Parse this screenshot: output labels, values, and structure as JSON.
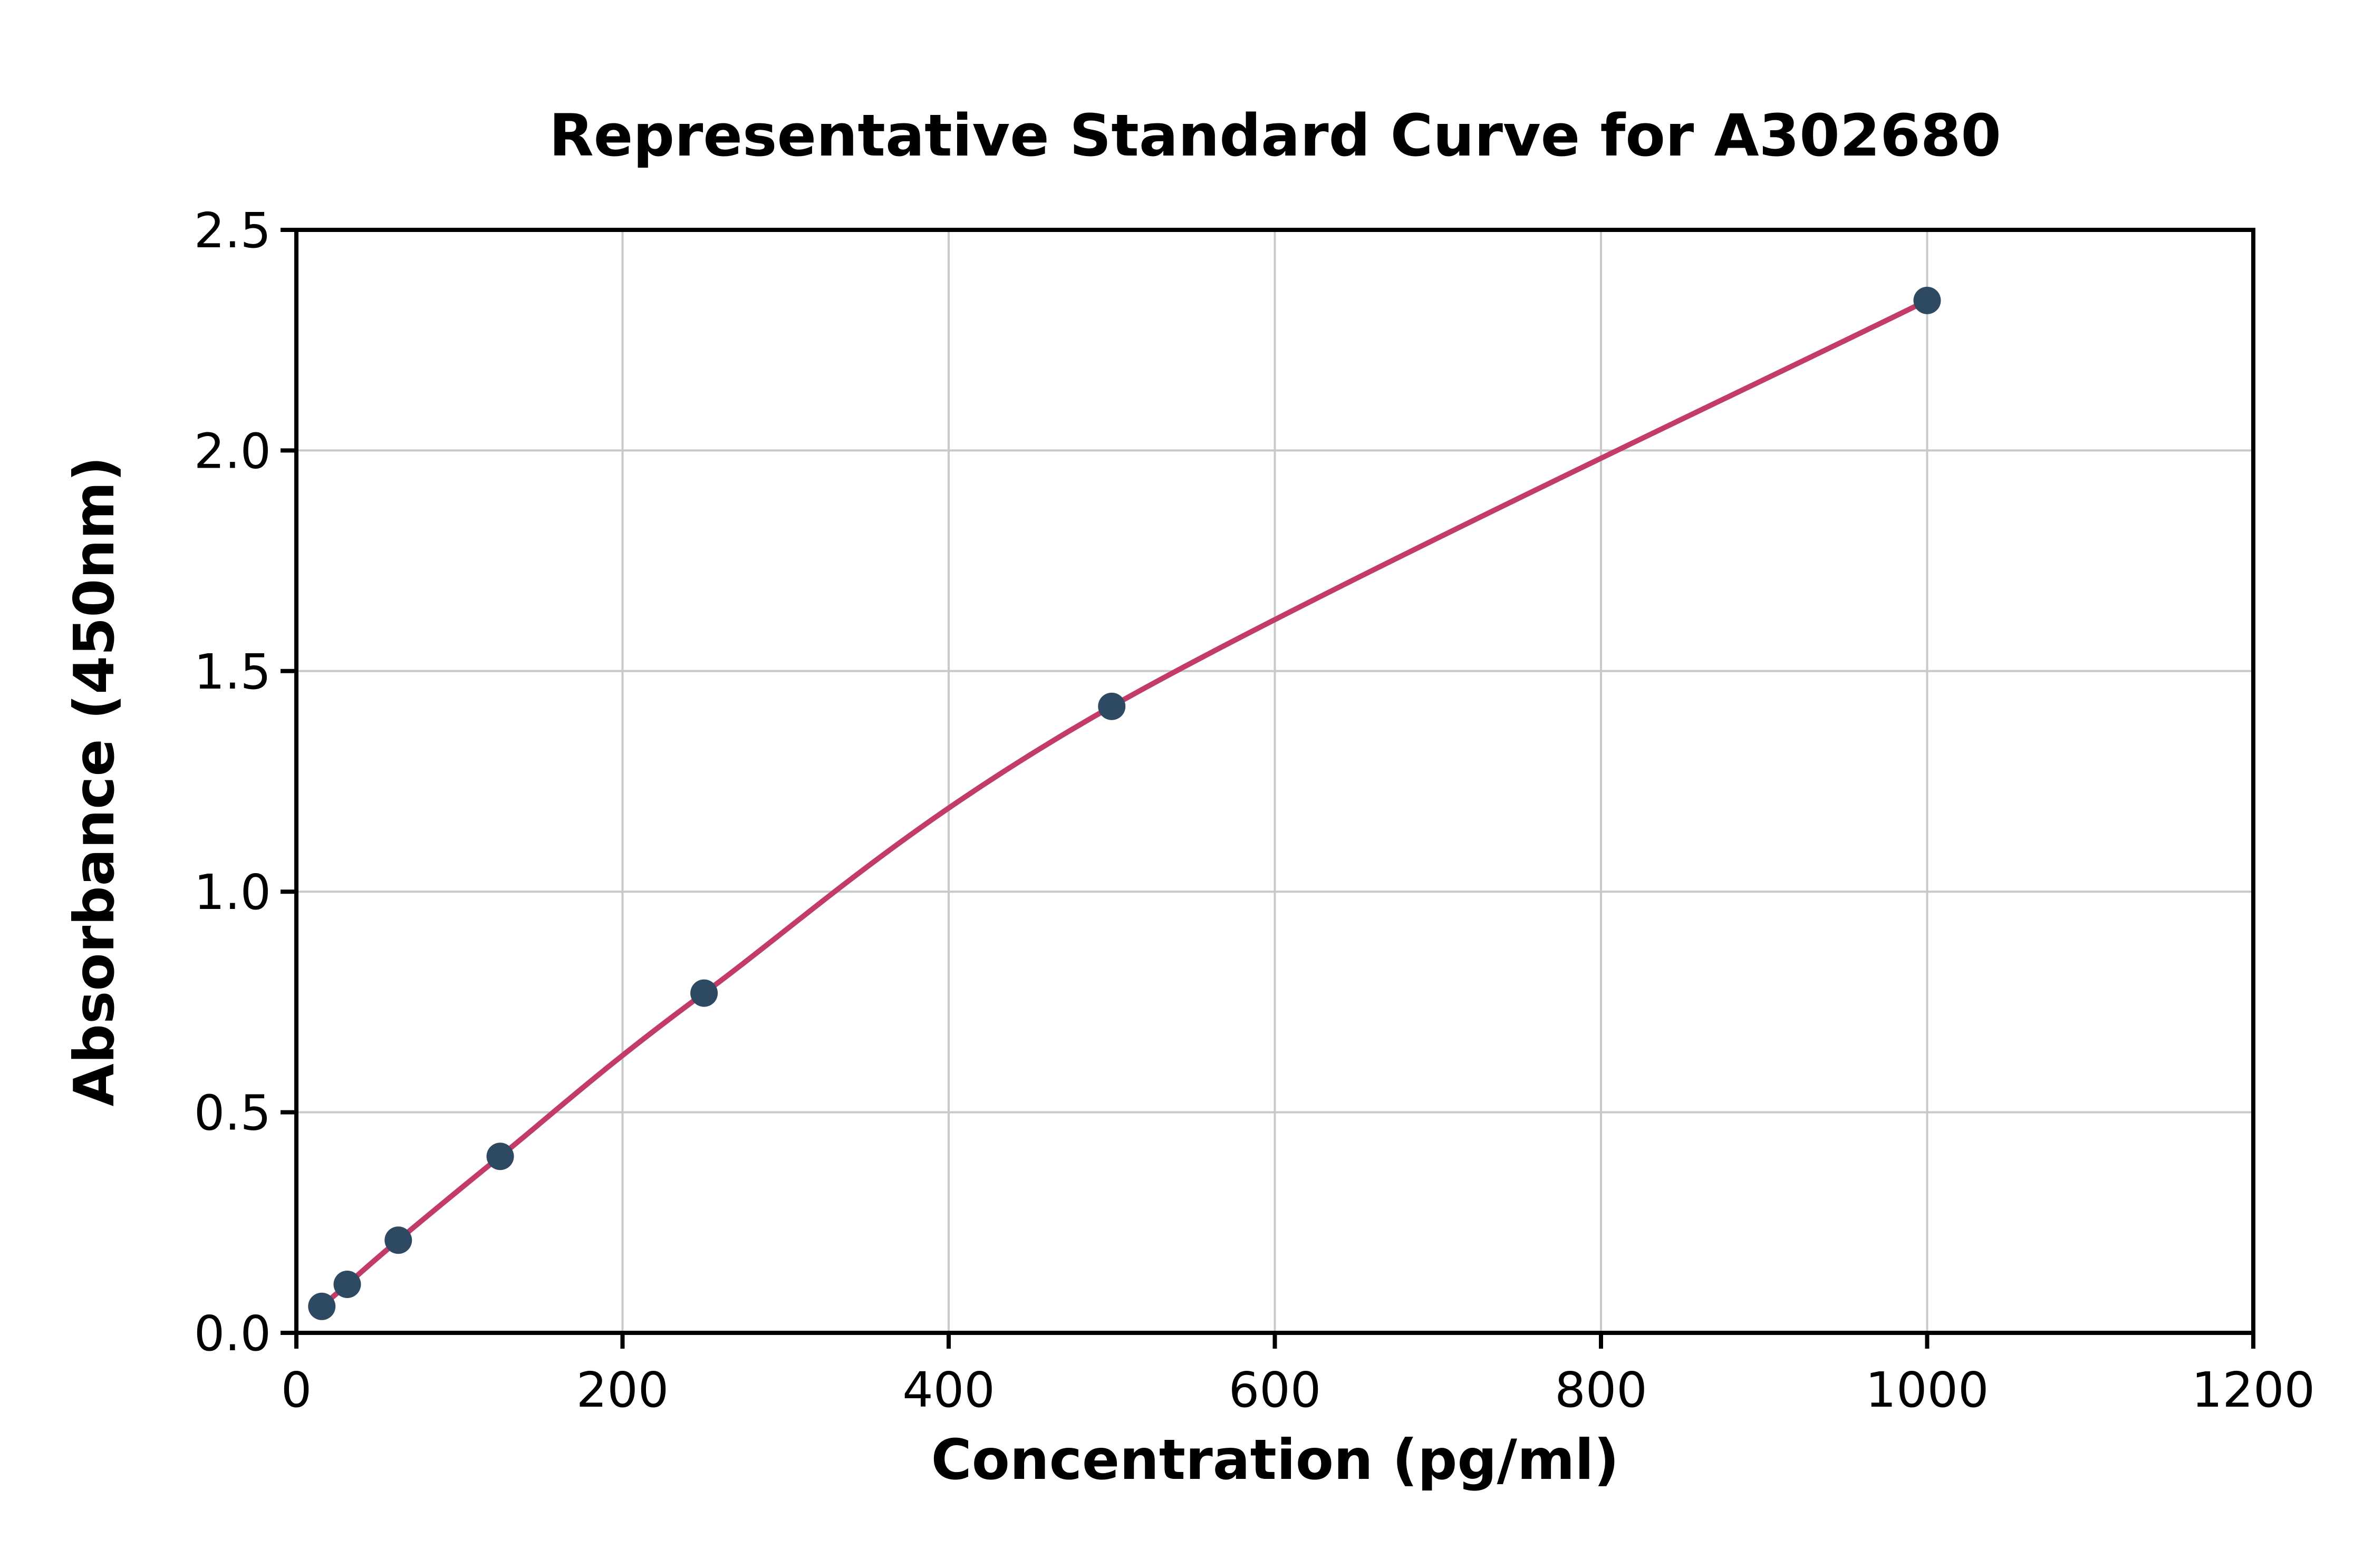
{
  "chart_data": {
    "type": "scatter",
    "title": "Representative Standard Curve for A302680",
    "xlabel": "Concentration (pg/ml)",
    "ylabel": "Absorbance (450nm)",
    "xlim": [
      0,
      1200
    ],
    "ylim": [
      0,
      2.5
    ],
    "grid": true,
    "legend": "none",
    "x_ticks": [
      {
        "v": 0,
        "label": "0"
      },
      {
        "v": 200,
        "label": "200"
      },
      {
        "v": 400,
        "label": "400"
      },
      {
        "v": 600,
        "label": "600"
      },
      {
        "v": 800,
        "label": "800"
      },
      {
        "v": 1000,
        "label": "1000"
      },
      {
        "v": 1200,
        "label": "1200"
      }
    ],
    "y_ticks": [
      {
        "v": 0.0,
        "label": "0.0"
      },
      {
        "v": 0.5,
        "label": "0.5"
      },
      {
        "v": 1.0,
        "label": "1.0"
      },
      {
        "v": 1.5,
        "label": "1.5"
      },
      {
        "v": 2.0,
        "label": "2.0"
      },
      {
        "v": 2.5,
        "label": "2.5"
      }
    ],
    "points": [
      {
        "x": 15.6,
        "y": 0.06
      },
      {
        "x": 31.2,
        "y": 0.11
      },
      {
        "x": 62.5,
        "y": 0.21
      },
      {
        "x": 125,
        "y": 0.4
      },
      {
        "x": 250,
        "y": 0.77
      },
      {
        "x": 500,
        "y": 1.42
      },
      {
        "x": 1000,
        "y": 2.34
      }
    ],
    "colors": {
      "point": "#2e4a62",
      "curve": "#c23b69",
      "grid": "#c9c9c9",
      "spine": "#000000",
      "background": "#ffffff"
    }
  }
}
